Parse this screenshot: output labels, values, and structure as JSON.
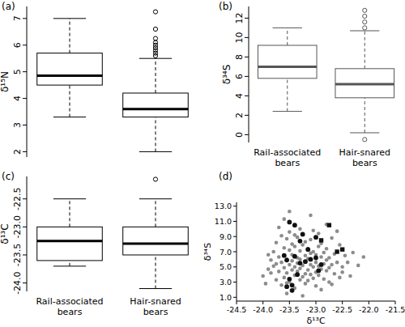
{
  "chart_data": [
    {
      "type": "box",
      "title": "(a)",
      "ylabel": "δ¹⁵N",
      "color": "#000000",
      "categories": [
        null,
        null
      ],
      "boxes": [
        {
          "min": 3.3,
          "q1": 4.5,
          "median": 4.85,
          "q3": 5.7,
          "max": 7.0,
          "outliers": []
        },
        {
          "min": 2.0,
          "q1": 3.3,
          "median": 3.6,
          "q3": 4.2,
          "max": 5.5,
          "outliers": [
            5.6,
            5.7,
            5.8,
            5.9,
            6.0,
            6.1,
            6.25,
            6.6,
            7.25
          ]
        }
      ],
      "ylim": [
        1.8,
        7.45
      ],
      "yticks": [
        2,
        3,
        4,
        5,
        6,
        7
      ]
    },
    {
      "type": "box",
      "title": "(b)",
      "ylabel": "δ³⁴S",
      "color": "#555555",
      "categories": [
        "Rail-associated bears",
        "Hair-snared bears"
      ],
      "boxes": [
        {
          "min": 2.4,
          "q1": 5.8,
          "median": 7.0,
          "q3": 9.2,
          "max": 11.0,
          "outliers": []
        },
        {
          "min": 0.2,
          "q1": 3.8,
          "median": 5.2,
          "q3": 6.8,
          "max": 10.7,
          "outliers": [
            11.0,
            11.6,
            12.2,
            12.8,
            -0.5
          ]
        }
      ],
      "ylim": [
        -0.8,
        13.2
      ],
      "yticks": [
        0,
        2,
        4,
        6,
        8,
        10,
        12
      ]
    },
    {
      "type": "box",
      "title": "(c)",
      "ylabel": "δ¹³C",
      "color": "#000000",
      "categories": [
        "Rail-associated bears",
        "Hair-snared bears"
      ],
      "boxes": [
        {
          "min": -23.7,
          "q1": -23.6,
          "median": -23.25,
          "q3": -23.0,
          "max": -22.5,
          "outliers": []
        },
        {
          "min": -24.1,
          "q1": -23.5,
          "median": -23.3,
          "q3": -23.0,
          "max": -22.5,
          "outliers": [
            -22.15
          ]
        }
      ],
      "ylim": [
        -24.15,
        -22.1
      ],
      "yticks": [
        {
          "value": -24,
          "label": "-24.0"
        },
        -23.5,
        {
          "value": -23,
          "label": "-23.0"
        },
        -22.5
      ]
    },
    {
      "type": "scatter",
      "title": "(d)",
      "xlabel": "δ¹³C",
      "ylabel": "δ³⁴S",
      "series": [
        {
          "color": "#8c8c8c",
          "marker": "circle",
          "x": [
            -24.0,
            -23.95,
            -23.9,
            -23.85,
            -23.8,
            -23.8,
            -23.75,
            -23.75,
            -23.7,
            -23.7,
            -23.7,
            -23.65,
            -23.65,
            -23.65,
            -23.6,
            -23.6,
            -23.6,
            -23.6,
            -23.55,
            -23.55,
            -23.55,
            -23.55,
            -23.5,
            -23.5,
            -23.5,
            -23.5,
            -23.5,
            -23.45,
            -23.45,
            -23.45,
            -23.45,
            -23.4,
            -23.4,
            -23.4,
            -23.4,
            -23.4,
            -23.35,
            -23.35,
            -23.35,
            -23.35,
            -23.3,
            -23.3,
            -23.3,
            -23.3,
            -23.3,
            -23.25,
            -23.25,
            -23.25,
            -23.25,
            -23.2,
            -23.2,
            -23.2,
            -23.2,
            -23.2,
            -23.15,
            -23.15,
            -23.15,
            -23.15,
            -23.1,
            -23.1,
            -23.1,
            -23.1,
            -23.1,
            -23.05,
            -23.05,
            -23.05,
            -23.05,
            -23.0,
            -23.0,
            -23.0,
            -23.0,
            -22.95,
            -22.95,
            -22.95,
            -22.95,
            -22.9,
            -22.9,
            -22.9,
            -22.9,
            -22.85,
            -22.85,
            -22.85,
            -22.8,
            -22.8,
            -22.8,
            -22.8,
            -22.75,
            -22.75,
            -22.75,
            -22.7,
            -22.7,
            -22.7,
            -22.65,
            -22.65,
            -22.6,
            -22.6,
            -22.55,
            -22.55,
            -22.5,
            -22.5,
            -22.45,
            -22.4,
            -22.35,
            -22.3,
            -22.2,
            -22.1,
            -23.9,
            -23.85,
            -23.75,
            -23.55
          ],
          "values": [
            3.8,
            2.8,
            4.7,
            5.9,
            7.0,
            5.1,
            8.2,
            3.3,
            4.4,
            6.3,
            10.2,
            9.1,
            5.6,
            2.6,
            7.5,
            4.9,
            3.6,
            11.3,
            6.0,
            8.7,
            4.2,
            1.5,
            5.3,
            7.2,
            9.6,
            3.0,
            12.3,
            6.6,
            4.6,
            8.0,
            5.8,
            3.9,
            7.7,
            5.0,
            9.2,
            2.2,
            6.2,
            4.4,
            8.9,
            5.5,
            3.3,
            7.1,
            6.0,
            10.0,
            4.8,
            5.2,
            3.7,
            7.9,
            1.2,
            6.5,
            4.1,
            8.3,
            5.7,
            2.8,
            7.4,
            4.6,
            6.1,
            3.2,
            5.3,
            8.6,
            4.0,
            6.8,
            11.8,
            5.0,
            3.5,
            7.0,
            9.8,
            5.6,
            4.3,
            6.6,
            2.5,
            7.7,
            5.1,
            3.9,
            9.4,
            6.3,
            4.7,
            2.0,
            8.1,
            5.4,
            3.4,
            6.9,
            4.5,
            7.4,
            5.9,
            10.6,
            3.0,
            6.2,
            4.9,
            8.8,
            5.3,
            2.7,
            6.7,
            4.1,
            5.6,
            9.7,
            3.6,
            7.9,
            5.0,
            4.3,
            6.5,
            5.6,
            3.8,
            6.9,
            5.2,
            6.3,
            6.6,
            4.2,
            5.4,
            2.9
          ]
        },
        {
          "color": "#111111",
          "marker": "circle",
          "x": [
            -23.5,
            -23.4,
            -23.25,
            -23.0,
            -23.6,
            -23.4,
            -23.3,
            -23.2,
            -23.1,
            -23.0,
            -22.9,
            -23.5,
            -23.55,
            -23.45,
            -23.45,
            -23.3,
            -22.95,
            -23.35,
            -23.15,
            -23.55
          ],
          "values": [
            10.9,
            10.5,
            9.3,
            8.9,
            6.5,
            6.4,
            5.5,
            5.7,
            6.0,
            6.2,
            5.3,
            3.4,
            2.4,
            2.6,
            1.9,
            8.4,
            4.5,
            4.0,
            7.3,
            5.9
          ]
        },
        {
          "color": "#111111",
          "marker": "square",
          "x": [
            -22.75,
            -22.6,
            -22.5,
            -22.9
          ],
          "values": [
            10.5,
            7.0,
            7.3,
            8.5
          ]
        }
      ],
      "xlim": [
        -24.5,
        -21.5
      ],
      "xticks": [
        -24.5,
        {
          "value": -24,
          "label": "-24.0"
        },
        -23.5,
        {
          "value": -23,
          "label": "-23.0"
        },
        -22.5,
        {
          "value": -22,
          "label": "-22.0"
        },
        -21.5
      ],
      "ylim": [
        0.5,
        13.5
      ],
      "yticks": [
        {
          "value": 1,
          "label": "1.0"
        },
        {
          "value": 3,
          "label": "3.0"
        },
        {
          "value": 5,
          "label": "5.0"
        },
        {
          "value": 7,
          "label": "7.0"
        },
        {
          "value": 9,
          "label": "9.0"
        },
        {
          "value": 11,
          "label": "11.0"
        },
        {
          "value": 13,
          "label": "13.0"
        }
      ]
    }
  ]
}
